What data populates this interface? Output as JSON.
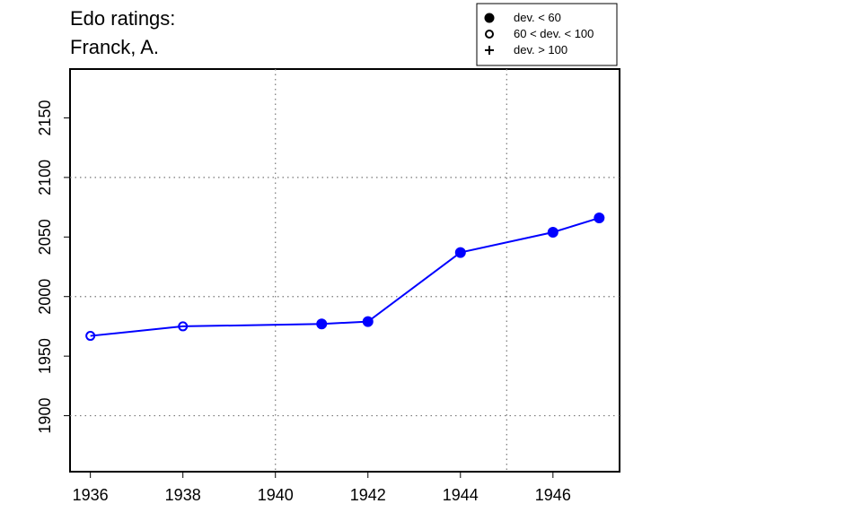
{
  "chart_data": {
    "type": "line",
    "title": [
      "Edo ratings:",
      "Franck, A."
    ],
    "x": [
      1936,
      1938,
      1941,
      1942,
      1944,
      1946,
      1947
    ],
    "values": [
      1967,
      1975,
      1977,
      1979,
      2037,
      2054,
      2066
    ],
    "markers": [
      "open",
      "open",
      "filled",
      "filled",
      "filled",
      "filled",
      "filled"
    ],
    "color": "#0000ff",
    "xlim": [
      1935.56,
      1947.44
    ],
    "xticks": [
      1936,
      1938,
      1940,
      1942,
      1944,
      1946
    ],
    "ylim": [
      1853,
      2191
    ],
    "yticks": [
      1900,
      1950,
      2000,
      2050,
      2100,
      2150
    ],
    "xgrid": [
      1940,
      1945
    ],
    "ygrid": [
      1900,
      2000,
      2100
    ],
    "legend": [
      {
        "label": "dev. < 60",
        "marker": "filled"
      },
      {
        "label": "60 < dev. < 100",
        "marker": "open"
      },
      {
        "label": "dev. > 100",
        "marker": "plus"
      }
    ],
    "legend_position": "top-right"
  }
}
